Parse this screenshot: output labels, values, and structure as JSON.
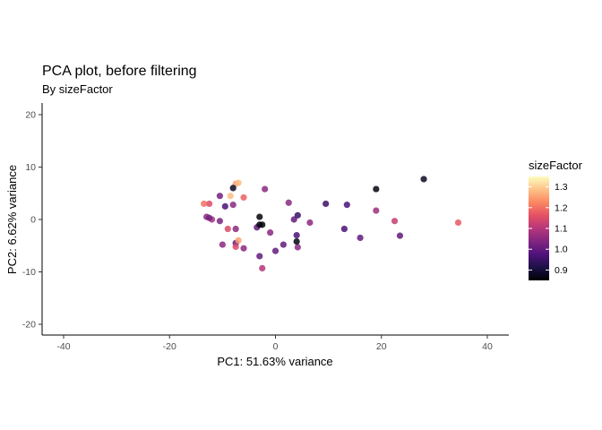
{
  "chart_data": {
    "type": "scatter",
    "title": "PCA plot, before filtering",
    "subtitle": "By sizeFactor",
    "xlabel": "PC1: 51.63% variance",
    "ylabel": "PC2: 6.62% variance",
    "xlim": [
      -44,
      44
    ],
    "ylim": [
      -22,
      22
    ],
    "x_ticks": [
      -40,
      -20,
      0,
      20,
      40
    ],
    "y_ticks": [
      -20,
      -10,
      0,
      10,
      20
    ],
    "grid": false,
    "legend": {
      "title": "sizeFactor",
      "placement": "right",
      "type": "colorbar",
      "range": [
        0.85,
        1.35
      ],
      "ticks": [
        0.9,
        1.0,
        1.1,
        1.2,
        1.3
      ],
      "tick_labels": [
        "0.9",
        "1.0",
        "1.1",
        "1.2",
        "1.3"
      ]
    },
    "colorscale": {
      "name": "magma",
      "stops": [
        "#000004",
        "#1c1044",
        "#4f127b",
        "#812581",
        "#b5367a",
        "#e55064",
        "#fb8761",
        "#fec287",
        "#fcfdbf"
      ]
    },
    "points": [
      {
        "x": -7.5,
        "y": 6.8,
        "size_factor": 1.25
      },
      {
        "x": -7.0,
        "y": 7.0,
        "size_factor": 1.28
      },
      {
        "x": -8.0,
        "y": 6.0,
        "size_factor": 0.88
      },
      {
        "x": -8.5,
        "y": 4.5,
        "size_factor": 1.28
      },
      {
        "x": -10.5,
        "y": 4.5,
        "size_factor": 1.02
      },
      {
        "x": -6.0,
        "y": 4.2,
        "size_factor": 1.18
      },
      {
        "x": -12.5,
        "y": 3.0,
        "size_factor": 1.15
      },
      {
        "x": -13.5,
        "y": 3.0,
        "size_factor": 1.2
      },
      {
        "x": -9.5,
        "y": 2.5,
        "size_factor": 0.97
      },
      {
        "x": -8.0,
        "y": 2.8,
        "size_factor": 1.05
      },
      {
        "x": -13.0,
        "y": 0.5,
        "size_factor": 1.05
      },
      {
        "x": -12.0,
        "y": 0.0,
        "size_factor": 1.08
      },
      {
        "x": -12.5,
        "y": 0.3,
        "size_factor": 1.02
      },
      {
        "x": -10.5,
        "y": -0.3,
        "size_factor": 1.03
      },
      {
        "x": -9.0,
        "y": -1.8,
        "size_factor": 1.15
      },
      {
        "x": -7.5,
        "y": -1.8,
        "size_factor": 1.05
      },
      {
        "x": -10.0,
        "y": -4.8,
        "size_factor": 1.05
      },
      {
        "x": -7.5,
        "y": -4.5,
        "size_factor": 1.0
      },
      {
        "x": -7.0,
        "y": -4.0,
        "size_factor": 1.25
      },
      {
        "x": -7.5,
        "y": -5.2,
        "size_factor": 1.15
      },
      {
        "x": -6.0,
        "y": -5.5,
        "size_factor": 1.05
      },
      {
        "x": -3.5,
        "y": -1.5,
        "size_factor": 1.0
      },
      {
        "x": -3.0,
        "y": 0.5,
        "size_factor": 0.86
      },
      {
        "x": -3.0,
        "y": -1.0,
        "size_factor": 0.86
      },
      {
        "x": -2.5,
        "y": -1.0,
        "size_factor": 0.86
      },
      {
        "x": -2.0,
        "y": 5.8,
        "size_factor": 1.05
      },
      {
        "x": -1.0,
        "y": -2.5,
        "size_factor": 1.05
      },
      {
        "x": -3.0,
        "y": -7.0,
        "size_factor": 1.0
      },
      {
        "x": -2.5,
        "y": -9.3,
        "size_factor": 1.1
      },
      {
        "x": 0.0,
        "y": -6.0,
        "size_factor": 1.0
      },
      {
        "x": 1.5,
        "y": -4.8,
        "size_factor": 1.0
      },
      {
        "x": 2.5,
        "y": 3.2,
        "size_factor": 1.05
      },
      {
        "x": 3.5,
        "y": 0.0,
        "size_factor": 1.0
      },
      {
        "x": 4.2,
        "y": 0.8,
        "size_factor": 0.95
      },
      {
        "x": 4.0,
        "y": -3.0,
        "size_factor": 0.97
      },
      {
        "x": 4.2,
        "y": -5.3,
        "size_factor": 1.05
      },
      {
        "x": 4.0,
        "y": -4.2,
        "size_factor": 0.86
      },
      {
        "x": 6.5,
        "y": -0.6,
        "size_factor": 1.05
      },
      {
        "x": 9.5,
        "y": 3.0,
        "size_factor": 0.95
      },
      {
        "x": 13.0,
        "y": -1.8,
        "size_factor": 0.97
      },
      {
        "x": 13.5,
        "y": 2.8,
        "size_factor": 0.97
      },
      {
        "x": 16.0,
        "y": -3.5,
        "size_factor": 1.0
      },
      {
        "x": 19.0,
        "y": 5.8,
        "size_factor": 0.86
      },
      {
        "x": 19.0,
        "y": 1.7,
        "size_factor": 1.07
      },
      {
        "x": 22.5,
        "y": -0.3,
        "size_factor": 1.12
      },
      {
        "x": 23.5,
        "y": -3.1,
        "size_factor": 1.0
      },
      {
        "x": 28.0,
        "y": 7.7,
        "size_factor": 0.88
      },
      {
        "x": 34.5,
        "y": -0.6,
        "size_factor": 1.17
      }
    ]
  }
}
